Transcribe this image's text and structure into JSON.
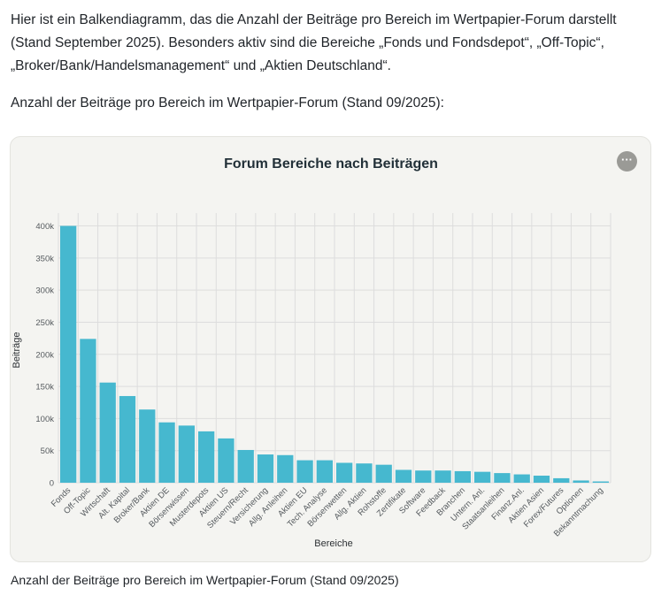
{
  "intro_text": "Hier ist ein Balkendiagramm, das die Anzahl der Beiträge pro Bereich im Wertpapier-Forum darstellt (Stand September 2025). Besonders aktiv sind die Bereiche „Fonds und Fondsdepot“, „Off-Topic“, „Broker/Bank/Handelsmanagement“ und „Aktien Deutschland“.",
  "subtitle": "Anzahl der Beiträge pro Bereich im Wertpapier-Forum (Stand 09/2025):",
  "caption": "Anzahl der Beiträge pro Bereich im Wertpapier-Forum (Stand 09/2025)",
  "more_button_label": "···",
  "colors": {
    "bar": "#46b8cf",
    "grid": "#dddddd",
    "card": "#f4f4f1"
  },
  "chart_data": {
    "type": "bar",
    "title": "Forum Bereiche nach Beiträgen",
    "xlabel": "Bereiche",
    "ylabel": "Beiträge",
    "ylim": [
      0,
      420000
    ],
    "yticks": [
      0,
      50000,
      100000,
      150000,
      200000,
      250000,
      300000,
      350000,
      400000
    ],
    "ytick_labels": [
      "0",
      "50k",
      "100k",
      "150k",
      "200k",
      "250k",
      "300k",
      "350k",
      "400k"
    ],
    "categories": [
      "Fonds",
      "Off-Topic",
      "Wirtschaft",
      "Alt. Kapital",
      "Broker/Bank",
      "Aktien DE",
      "Börsenwissen",
      "Musterdepots",
      "Aktien US",
      "Steuern/Recht",
      "Versicherung",
      "Allg. Anleihen",
      "Aktien EU",
      "Tech. Analyse",
      "Börsenwetten",
      "Allg. Aktien",
      "Rohstoffe",
      "Zertifikate",
      "Software",
      "Feedback",
      "Branchen",
      "Untern. Anl.",
      "Staatsanleihen",
      "Finanz.Anl.",
      "Aktien Asien",
      "Forex/Futures",
      "Optionen",
      "Bekanntmachung"
    ],
    "values": [
      400000,
      224000,
      156000,
      135000,
      114000,
      94000,
      89000,
      80000,
      69000,
      51000,
      44000,
      43000,
      35000,
      35000,
      31000,
      30000,
      28000,
      20000,
      19000,
      19000,
      18000,
      17000,
      15000,
      13000,
      11000,
      7000,
      3500,
      2000
    ]
  }
}
